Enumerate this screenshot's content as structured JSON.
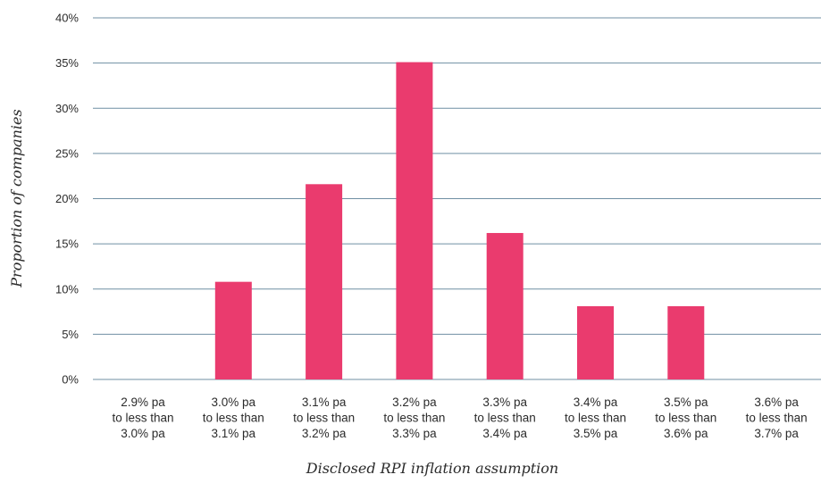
{
  "chart_data": {
    "type": "bar",
    "title": "",
    "xlabel": "Disclosed RPI inflation assumption",
    "ylabel": "Proportion of companies",
    "ylim": [
      0,
      40
    ],
    "yticks": [
      "0%",
      "5%",
      "10%",
      "15%",
      "20%",
      "25%",
      "30%",
      "35%",
      "40%"
    ],
    "grid": true,
    "categories": [
      [
        "2.9% pa",
        "to less than",
        "3.0% pa"
      ],
      [
        "3.0% pa",
        "to less than",
        "3.1% pa"
      ],
      [
        "3.1% pa",
        "to less than",
        "3.2% pa"
      ],
      [
        "3.2% pa",
        "to less than",
        "3.3% pa"
      ],
      [
        "3.3% pa",
        "to less than",
        "3.4% pa"
      ],
      [
        "3.4% pa",
        "to less than",
        "3.5% pa"
      ],
      [
        "3.5% pa",
        "to less than",
        "3.6% pa"
      ],
      [
        "3.6% pa",
        "to less than",
        "3.7% pa"
      ]
    ],
    "values": [
      0,
      10.8,
      21.6,
      35.1,
      16.2,
      8.1,
      8.1,
      0
    ],
    "bar_color": "#ea3b6e",
    "grid_color": "#6f8fa3"
  }
}
